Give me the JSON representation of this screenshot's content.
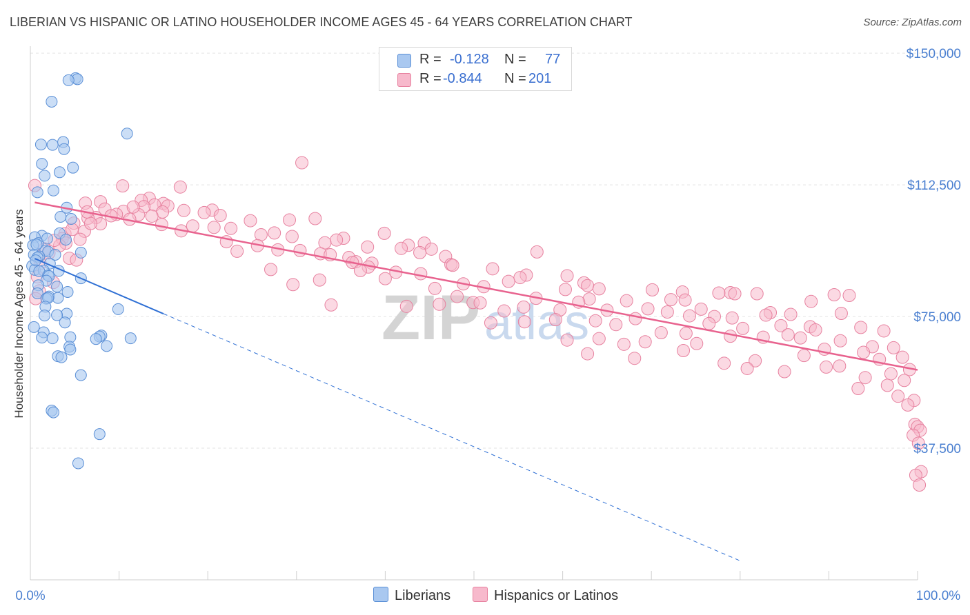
{
  "title": "LIBERIAN VS HISPANIC OR LATINO HOUSEHOLDER INCOME AGES 45 - 64 YEARS CORRELATION CHART",
  "source": "Source: ZipAtlas.com",
  "watermark": {
    "zip": "ZIP",
    "atlas": "atlas"
  },
  "legend": {
    "rows": [
      {
        "r_label": "R =",
        "r_value": "-0.128",
        "n_label": "N =",
        "n_value": "77",
        "color": "#a9c8f0"
      },
      {
        "r_label": "R =",
        "r_value": "-0.844",
        "n_label": "N =",
        "n_value": "201",
        "color": "#f7b9cc"
      }
    ]
  },
  "bottom_legend": {
    "series1": "Liberians",
    "series2": "Hispanics or Latinos"
  },
  "colors": {
    "blue_fill": "#a9c8f0",
    "blue_stroke": "#5a8fd6",
    "blue_line": "#2e6fd4",
    "pink_fill": "#f7b9cc",
    "pink_stroke": "#e7819f",
    "pink_line": "#e8628e",
    "tick": "#4a7fd0",
    "grid": "#e3e3e3"
  },
  "chart_data": {
    "type": "scatter",
    "title": "LIBERIAN VS HISPANIC OR LATINO HOUSEHOLDER INCOME AGES 45 - 64 YEARS CORRELATION CHART",
    "xlabel": "",
    "ylabel": "Householder Income Ages 45 - 64 years",
    "xlim": [
      0,
      100
    ],
    "ylim": [
      0,
      152000
    ],
    "y_ticks": [
      37500,
      75000,
      112500,
      150000
    ],
    "y_tick_labels": [
      "$37,500",
      "$75,000",
      "$112,500",
      "$150,000"
    ],
    "x_tick_labels": [
      "0.0%",
      "100.0%"
    ],
    "grid": true,
    "legend_position": "top-center",
    "series": [
      {
        "name": "Liberians",
        "r": -0.128,
        "n": 77,
        "trend": {
          "x0": 0.5,
          "y0": 91500,
          "x1": 15,
          "y1": 75800,
          "dashed_to_x": 80
        },
        "points": [
          [
            5.1,
            142900
          ],
          [
            5.3,
            142600
          ],
          [
            4.3,
            142300
          ],
          [
            2.4,
            136200
          ],
          [
            10.9,
            127100
          ],
          [
            3.7,
            124700
          ],
          [
            1.2,
            124000
          ],
          [
            2.5,
            123900
          ],
          [
            3.8,
            122700
          ],
          [
            1.3,
            118500
          ],
          [
            4.8,
            117400
          ],
          [
            3.3,
            116100
          ],
          [
            1.6,
            115100
          ],
          [
            2.6,
            110900
          ],
          [
            0.8,
            110400
          ],
          [
            4.1,
            106000
          ],
          [
            3.4,
            103400
          ],
          [
            4.6,
            102800
          ],
          [
            3.3,
            98700
          ],
          [
            1.3,
            98000
          ],
          [
            0.5,
            97600
          ],
          [
            4.0,
            96900
          ],
          [
            0.9,
            95900
          ],
          [
            0.3,
            95300
          ],
          [
            1.7,
            93800
          ],
          [
            2.0,
            93500
          ],
          [
            5.7,
            93200
          ],
          [
            0.4,
            92600
          ],
          [
            1.0,
            92100
          ],
          [
            0.8,
            91800
          ],
          [
            2.2,
            90100
          ],
          [
            0.2,
            89400
          ],
          [
            0.5,
            88300
          ],
          [
            1.5,
            88100
          ],
          [
            1.0,
            87900
          ],
          [
            2.0,
            86700
          ],
          [
            2.1,
            86500
          ],
          [
            5.7,
            85900
          ],
          [
            1.8,
            85200
          ],
          [
            0.9,
            83900
          ],
          [
            3.0,
            83500
          ],
          [
            4.2,
            82000
          ],
          [
            0.8,
            81600
          ],
          [
            2.1,
            80700
          ],
          [
            3.1,
            80300
          ],
          [
            1.8,
            80100
          ],
          [
            2.0,
            80300
          ],
          [
            9.9,
            77100
          ],
          [
            1.7,
            77800
          ],
          [
            4.1,
            75800
          ],
          [
            3.0,
            75400
          ],
          [
            1.6,
            75300
          ],
          [
            3.9,
            73300
          ],
          [
            0.4,
            72000
          ],
          [
            1.5,
            70500
          ],
          [
            4.5,
            69100
          ],
          [
            1.3,
            69000
          ],
          [
            8.0,
            69600
          ],
          [
            7.8,
            69300
          ],
          [
            11.3,
            68800
          ],
          [
            7.4,
            68600
          ],
          [
            2.5,
            68800
          ],
          [
            8.6,
            66600
          ],
          [
            4.4,
            66400
          ],
          [
            4.5,
            65600
          ],
          [
            3.1,
            63700
          ],
          [
            3.5,
            63400
          ],
          [
            5.7,
            58300
          ],
          [
            2.4,
            48200
          ],
          [
            2.6,
            47700
          ],
          [
            7.8,
            41500
          ],
          [
            5.4,
            33200
          ],
          [
            0.7,
            95500
          ],
          [
            1.9,
            97200
          ],
          [
            2.8,
            92600
          ],
          [
            0.6,
            91000
          ],
          [
            3.2,
            88000
          ]
        ]
      },
      {
        "name": "Hispanics or Latinos",
        "r": -0.844,
        "n": 201,
        "trend": {
          "x0": 0.5,
          "y0": 107500,
          "x1": 100,
          "y1": 59800
        },
        "points": [
          [
            30.6,
            118800
          ],
          [
            0.5,
            112300
          ],
          [
            10.4,
            112200
          ],
          [
            16.9,
            111900
          ],
          [
            13.4,
            108700
          ],
          [
            12.5,
            108100
          ],
          [
            7.9,
            107700
          ],
          [
            6.2,
            107300
          ],
          [
            15.0,
            107200
          ],
          [
            14.0,
            106800
          ],
          [
            15.5,
            106500
          ],
          [
            12.8,
            106300
          ],
          [
            8.4,
            105600
          ],
          [
            20.5,
            105300
          ],
          [
            17.3,
            105200
          ],
          [
            10.5,
            105000
          ],
          [
            14.9,
            104800
          ],
          [
            19.6,
            104600
          ],
          [
            9.7,
            104100
          ],
          [
            12.2,
            104000
          ],
          [
            21.4,
            103800
          ],
          [
            13.7,
            103600
          ],
          [
            7.4,
            103200
          ],
          [
            6.5,
            103000
          ],
          [
            11.2,
            102700
          ],
          [
            29.2,
            102500
          ],
          [
            24.8,
            102300
          ],
          [
            32.1,
            102900
          ],
          [
            7.9,
            101400
          ],
          [
            4.9,
            101600
          ],
          [
            14.8,
            101200
          ],
          [
            18.3,
            100800
          ],
          [
            20.7,
            100400
          ],
          [
            22.6,
            100100
          ],
          [
            17.0,
            99400
          ],
          [
            6.1,
            99300
          ],
          [
            27.5,
            98800
          ],
          [
            39.9,
            98700
          ],
          [
            3.9,
            98600
          ],
          [
            26.0,
            98300
          ],
          [
            29.5,
            97800
          ],
          [
            35.3,
            97300
          ],
          [
            3.6,
            97200
          ],
          [
            34.5,
            96800
          ],
          [
            22.1,
            96300
          ],
          [
            33.2,
            96000
          ],
          [
            4.0,
            95900
          ],
          [
            44.4,
            95900
          ],
          [
            42.6,
            95300
          ],
          [
            25.6,
            95200
          ],
          [
            38.0,
            94800
          ],
          [
            41.8,
            94400
          ],
          [
            45.2,
            94200
          ],
          [
            27.9,
            94000
          ],
          [
            30.4,
            93800
          ],
          [
            23.3,
            93600
          ],
          [
            43.9,
            93200
          ],
          [
            57.1,
            93400
          ],
          [
            32.7,
            92900
          ],
          [
            33.8,
            92600
          ],
          [
            46.8,
            92100
          ],
          [
            35.9,
            91800
          ],
          [
            4.4,
            91600
          ],
          [
            5.2,
            91100
          ],
          [
            36.7,
            90600
          ],
          [
            36.3,
            90400
          ],
          [
            38.5,
            90200
          ],
          [
            47.4,
            89800
          ],
          [
            47.6,
            89600
          ],
          [
            38.1,
            89100
          ],
          [
            52.1,
            88600
          ],
          [
            27.1,
            88400
          ],
          [
            37.2,
            88100
          ],
          [
            41.2,
            87600
          ],
          [
            44.0,
            87200
          ],
          [
            55.9,
            86800
          ],
          [
            60.5,
            86600
          ],
          [
            55.2,
            86100
          ],
          [
            40.0,
            85800
          ],
          [
            32.6,
            85400
          ],
          [
            53.9,
            85000
          ],
          [
            62.4,
            84600
          ],
          [
            48.8,
            84300
          ],
          [
            29.6,
            84100
          ],
          [
            62.8,
            83800
          ],
          [
            51.1,
            83500
          ],
          [
            45.6,
            83000
          ],
          [
            64.1,
            82900
          ],
          [
            60.3,
            82700
          ],
          [
            70.1,
            82600
          ],
          [
            73.5,
            82000
          ],
          [
            78.9,
            81800
          ],
          [
            77.6,
            81700
          ],
          [
            79.4,
            81500
          ],
          [
            81.9,
            81500
          ],
          [
            90.6,
            81200
          ],
          [
            92.3,
            81000
          ],
          [
            48.1,
            80700
          ],
          [
            57.0,
            80200
          ],
          [
            63.0,
            80000
          ],
          [
            72.2,
            79800
          ],
          [
            73.8,
            79700
          ],
          [
            67.2,
            79500
          ],
          [
            88.0,
            79300
          ],
          [
            61.8,
            79100
          ],
          [
            49.9,
            79000
          ],
          [
            50.7,
            78900
          ],
          [
            46.1,
            78500
          ],
          [
            33.9,
            78300
          ],
          [
            42.4,
            77900
          ],
          [
            55.6,
            77700
          ],
          [
            69.6,
            77200
          ],
          [
            75.6,
            77100
          ],
          [
            59.7,
            76900
          ],
          [
            65.0,
            76800
          ],
          [
            53.4,
            76600
          ],
          [
            71.8,
            76300
          ],
          [
            83.4,
            76100
          ],
          [
            91.4,
            75900
          ],
          [
            85.7,
            75600
          ],
          [
            82.9,
            75400
          ],
          [
            74.3,
            75200
          ],
          [
            77.1,
            75000
          ],
          [
            79.1,
            74600
          ],
          [
            68.2,
            74400
          ],
          [
            59.2,
            74100
          ],
          [
            63.7,
            73800
          ],
          [
            55.7,
            73500
          ],
          [
            51.9,
            73200
          ],
          [
            76.5,
            73000
          ],
          [
            66.0,
            72700
          ],
          [
            84.6,
            72400
          ],
          [
            87.9,
            72100
          ],
          [
            93.6,
            71900
          ],
          [
            80.3,
            71600
          ],
          [
            88.5,
            71200
          ],
          [
            96.2,
            70900
          ],
          [
            71.1,
            70400
          ],
          [
            73.9,
            70200
          ],
          [
            85.4,
            69800
          ],
          [
            78.9,
            69400
          ],
          [
            82.6,
            69100
          ],
          [
            86.8,
            68900
          ],
          [
            64.1,
            68700
          ],
          [
            60.5,
            68300
          ],
          [
            91.3,
            68100
          ],
          [
            69.3,
            67800
          ],
          [
            75.1,
            67300
          ],
          [
            66.9,
            67100
          ],
          [
            94.9,
            66400
          ],
          [
            97.3,
            66100
          ],
          [
            89.5,
            65700
          ],
          [
            73.6,
            65300
          ],
          [
            93.9,
            64800
          ],
          [
            62.8,
            64400
          ],
          [
            87.2,
            63900
          ],
          [
            98.3,
            63400
          ],
          [
            68.1,
            63100
          ],
          [
            95.7,
            62800
          ],
          [
            81.7,
            62400
          ],
          [
            78.2,
            61700
          ],
          [
            91.2,
            60900
          ],
          [
            89.7,
            60600
          ],
          [
            80.8,
            60200
          ],
          [
            99.1,
            59900
          ],
          [
            85.0,
            59300
          ],
          [
            97.0,
            58700
          ],
          [
            94.1,
            57600
          ],
          [
            98.5,
            56800
          ],
          [
            96.6,
            55400
          ],
          [
            93.3,
            54500
          ],
          [
            97.8,
            52300
          ],
          [
            99.6,
            51100
          ],
          [
            98.9,
            49800
          ],
          [
            99.7,
            44300
          ],
          [
            100.0,
            43600
          ],
          [
            100.3,
            42600
          ],
          [
            99.5,
            41200
          ],
          [
            100.1,
            38900
          ],
          [
            100.4,
            30800
          ],
          [
            99.8,
            29800
          ],
          [
            100.2,
            27000
          ],
          [
            5.6,
            97000
          ],
          [
            6.8,
            101500
          ],
          [
            3.3,
            95200
          ],
          [
            4.7,
            99800
          ],
          [
            2.7,
            96700
          ],
          [
            1.6,
            94300
          ],
          [
            6.4,
            104800
          ],
          [
            9.1,
            103700
          ],
          [
            11.6,
            106200
          ],
          [
            2.1,
            93100
          ],
          [
            1.1,
            90100
          ],
          [
            0.8,
            86300
          ],
          [
            2.6,
            84700
          ],
          [
            1.0,
            82300
          ],
          [
            0.6,
            80100
          ]
        ]
      }
    ]
  }
}
